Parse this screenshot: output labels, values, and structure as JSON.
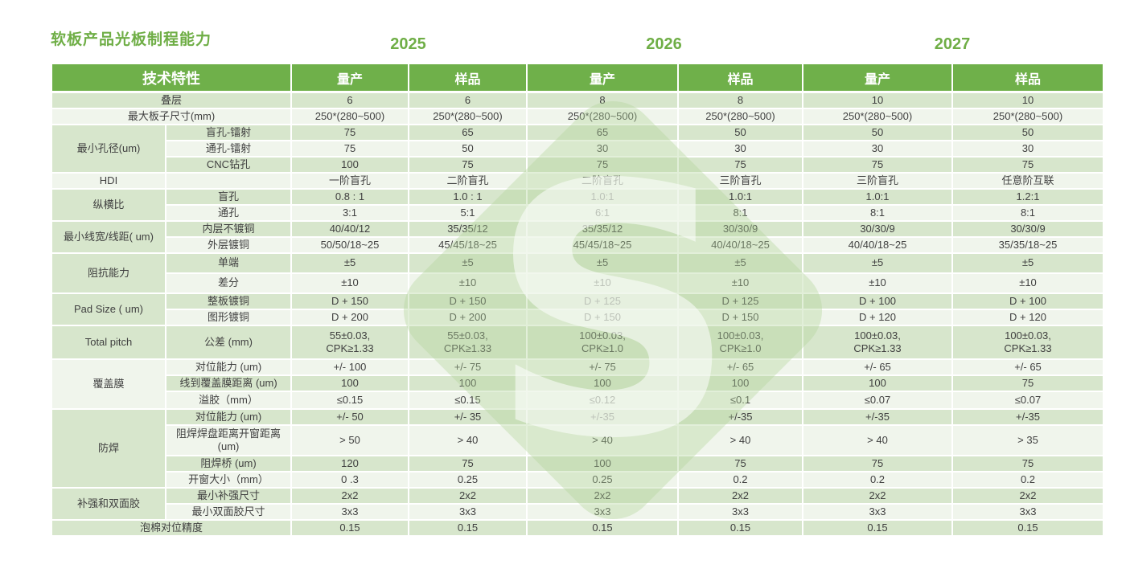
{
  "title": "软板产品光板制程能力",
  "years": [
    "2025",
    "2026",
    "2027"
  ],
  "header": {
    "feature": "技术特性",
    "col_labels": [
      "量产",
      "样品",
      "量产",
      "样品",
      "量产",
      "样品"
    ]
  },
  "watermark": {
    "letter": "S"
  },
  "colors": {
    "accent_green": "#6FAE46",
    "header_bg": "#6FB04A",
    "band_dark": "#D7E6CC",
    "band_light": "#F0F5EC",
    "text": "#404040",
    "watermark_green": "#B3D69C"
  },
  "rows": [
    {
      "span2": true,
      "label": "叠层",
      "values": [
        "6",
        "6",
        "8",
        "8",
        "10",
        "10"
      ]
    },
    {
      "span2": true,
      "label": "最大板子尺寸(mm)",
      "values": [
        "250*(280~500)",
        "250*(280~500)",
        "250*(280~500)",
        "250*(280~500)",
        "250*(280~500)",
        "250*(280~500)"
      ]
    },
    {
      "group": "最小孔径(um)",
      "group_rowspan": 3,
      "label": "盲孔-镭射",
      "values": [
        "75",
        "65",
        "65",
        "50",
        "50",
        "50"
      ]
    },
    {
      "label": "通孔-镭射",
      "values": [
        "75",
        "50",
        "30",
        "30",
        "30",
        "30"
      ]
    },
    {
      "label": "CNC钻孔",
      "values": [
        "100",
        "75",
        "75",
        "75",
        "75",
        "75"
      ]
    },
    {
      "group": "HDI",
      "group_rowspan": 1,
      "label": "",
      "values": [
        "一阶盲孔",
        "二阶盲孔",
        "二阶盲孔",
        "三阶盲孔",
        "三阶盲孔",
        "任意阶互联"
      ]
    },
    {
      "group": "纵横比",
      "group_rowspan": 2,
      "label": "盲孔",
      "values": [
        "0.8 : 1",
        "1.0 : 1",
        "1.0:1",
        "1.0:1",
        "1.0:1",
        "1.2:1"
      ]
    },
    {
      "label": "通孔",
      "values": [
        "3:1",
        "5:1",
        "6:1",
        "8:1",
        "8:1",
        "8:1"
      ]
    },
    {
      "group": "最小线宽/线距( um)",
      "group_rowspan": 2,
      "label": "内层不镀铜",
      "values": [
        "40/40/12",
        "35/35/12",
        "35/35/12",
        "30/30/9",
        "30/30/9",
        "30/30/9"
      ]
    },
    {
      "label": "外层镀铜",
      "values": [
        "50/50/18~25",
        "45/45/18~25",
        "45/45/18~25",
        "40/40/18~25",
        "40/40/18~25",
        "35/35/18~25"
      ]
    },
    {
      "group": "阻抗能力",
      "group_rowspan": 2,
      "label": "单端",
      "values": [
        "±5",
        "±5",
        "±5",
        "±5",
        "±5",
        "±5"
      ]
    },
    {
      "label": "差分",
      "values": [
        "±10",
        "±10",
        "±10",
        "±10",
        "±10",
        "±10"
      ]
    },
    {
      "group": "Pad Size ( um)",
      "group_rowspan": 2,
      "label": "整板镀铜",
      "values": [
        "D + 150",
        "D + 150",
        "D + 125",
        "D + 125",
        "D + 100",
        "D + 100"
      ]
    },
    {
      "label": "图形镀铜",
      "values": [
        "D + 200",
        "D + 200",
        "D + 150",
        "D + 150",
        "D + 120",
        "D + 120"
      ]
    },
    {
      "group": "Total pitch",
      "group_rowspan": 1,
      "label": "公差 (mm)",
      "values": [
        "55±0.03,\nCPK≥1.33",
        "55±0.03,\nCPK≥1.33",
        "100±0.03,\nCPK≥1.0",
        "100±0.03,\nCPK≥1.0",
        "100±0.03,\nCPK≥1.33",
        "100±0.03,\nCPK≥1.33"
      ]
    },
    {
      "group": "覆盖膜",
      "group_rowspan": 3,
      "label": "对位能力 (um)",
      "values": [
        "+/- 100",
        "+/- 75",
        "+/- 75",
        "+/- 65",
        "+/- 65",
        "+/- 65"
      ]
    },
    {
      "label": "线到覆盖膜距离 (um)",
      "values": [
        "100",
        "100",
        "100",
        "100",
        "100",
        "75"
      ]
    },
    {
      "label": "溢胶（mm）",
      "values": [
        "≤0.15",
        "≤0.15",
        "≤0.12",
        "≤0.1",
        "≤0.07",
        "≤0.07"
      ]
    },
    {
      "group": "防焊",
      "group_rowspan": 4,
      "label": "对位能力 (um)",
      "values": [
        "+/- 50",
        "+/- 35",
        "+/-35",
        "+/-35",
        "+/-35",
        "+/-35"
      ]
    },
    {
      "label": "阻焊焊盘距离开窗距离\n(um)",
      "values": [
        "> 50",
        "> 40",
        "> 40",
        "> 40",
        "> 40",
        "> 35"
      ]
    },
    {
      "label": "阻焊桥 (um)",
      "values": [
        "120",
        "75",
        "100",
        "75",
        "75",
        "75"
      ]
    },
    {
      "label": "开窗大小（mm）",
      "values": [
        "0 .3",
        "0.25",
        "0.25",
        "0.2",
        "0.2",
        "0.2"
      ]
    },
    {
      "group": "补强和双面胶",
      "group_rowspan": 2,
      "label": "最小补强尺寸",
      "values": [
        "2x2",
        "2x2",
        "2x2",
        "2x2",
        "2x2",
        "2x2"
      ]
    },
    {
      "label": "最小双面胶尺寸",
      "values": [
        "3x3",
        "3x3",
        "3x3",
        "3x3",
        "3x3",
        "3x3"
      ]
    },
    {
      "span2": true,
      "label": "泡棉对位精度",
      "values": [
        "0.15",
        "0.15",
        "0.15",
        "0.15",
        "0.15",
        "0.15"
      ]
    }
  ]
}
